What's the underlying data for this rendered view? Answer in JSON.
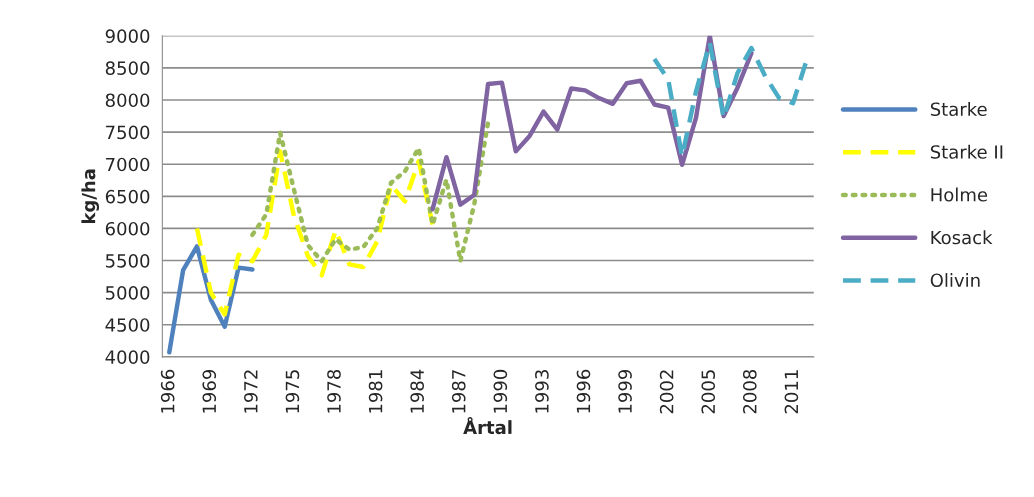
{
  "chart_data": {
    "type": "line",
    "xlabel": "Årtal",
    "ylabel": "kg/ha",
    "categories": [
      "1966",
      null,
      null,
      "1969",
      null,
      null,
      "1972",
      null,
      null,
      "1975",
      null,
      null,
      "1978",
      null,
      null,
      "1981",
      null,
      null,
      "1984",
      null,
      null,
      "1987",
      null,
      null,
      "1990",
      null,
      null,
      "1993",
      null,
      null,
      "1996",
      null,
      null,
      "1999",
      null,
      null,
      "2002",
      null,
      null,
      "2005",
      null,
      null,
      "2008",
      null,
      null,
      "2011",
      null
    ],
    "ylim": [
      4000,
      9000
    ],
    "yticks": [
      4000,
      4500,
      5000,
      5500,
      6000,
      6500,
      7000,
      7500,
      8000,
      8500,
      9000
    ],
    "grid": "y",
    "legend": "right",
    "marker": "none",
    "series": [
      {
        "name": "Starke",
        "color": "#4f81bd",
        "line_style": "solid",
        "values": [
          4070,
          5350,
          5720,
          4890,
          4470,
          5390,
          5360,
          null,
          null,
          null,
          null,
          null,
          null,
          null,
          null,
          null,
          null,
          null,
          null,
          null,
          null,
          null,
          null,
          null,
          null,
          null,
          null,
          null,
          null,
          null,
          null,
          null,
          null,
          null,
          null,
          null,
          null,
          null,
          null,
          null,
          null,
          null,
          null,
          null,
          null,
          null,
          null
        ]
      },
      {
        "name": "Starke II",
        "color": "#ffff00",
        "line_style": "dashed",
        "values": [
          null,
          null,
          6000,
          5000,
          4660,
          5590,
          5490,
          5900,
          7200,
          6190,
          5570,
          5270,
          5970,
          5440,
          5400,
          5800,
          6680,
          6420,
          7050,
          6060,
          null,
          null,
          null,
          null,
          null,
          null,
          null,
          null,
          null,
          null,
          null,
          null,
          null,
          null,
          null,
          null,
          null,
          null,
          null,
          null,
          null,
          null,
          null,
          null,
          null,
          null,
          null
        ]
      },
      {
        "name": "Holme",
        "color": "#9bbb59",
        "line_style": "dotted",
        "values": [
          null,
          null,
          null,
          null,
          null,
          null,
          5900,
          6220,
          7490,
          6600,
          5740,
          5490,
          5830,
          5670,
          5710,
          6000,
          6710,
          6890,
          7250,
          6060,
          6760,
          5490,
          6370,
          7650,
          null,
          null,
          null,
          null,
          null,
          null,
          null,
          null,
          null,
          null,
          null,
          null,
          null,
          null,
          null,
          null,
          null,
          null,
          null,
          null,
          null,
          null,
          null
        ]
      },
      {
        "name": "Kosack",
        "color": "#8064a2",
        "line_style": "solid",
        "values": [
          null,
          null,
          null,
          null,
          null,
          null,
          null,
          null,
          null,
          null,
          null,
          null,
          null,
          null,
          null,
          null,
          null,
          null,
          null,
          6300,
          7110,
          6370,
          6520,
          8250,
          8270,
          7200,
          7440,
          7820,
          7540,
          8180,
          8150,
          8030,
          7940,
          8260,
          8300,
          7930,
          7880,
          6990,
          7720,
          9000,
          7750,
          8190,
          8730,
          null,
          null,
          null,
          null
        ]
      },
      {
        "name": "Olivin",
        "color": "#4bacc6",
        "line_style": "dashed",
        "values": [
          null,
          null,
          null,
          null,
          null,
          null,
          null,
          null,
          null,
          null,
          null,
          null,
          null,
          null,
          null,
          null,
          null,
          null,
          null,
          null,
          null,
          null,
          null,
          null,
          null,
          null,
          null,
          null,
          null,
          null,
          null,
          null,
          null,
          null,
          null,
          8640,
          8320,
          7120,
          8130,
          8890,
          7720,
          8420,
          8810,
          8370,
          8030,
          7950,
          8630
        ]
      }
    ]
  }
}
